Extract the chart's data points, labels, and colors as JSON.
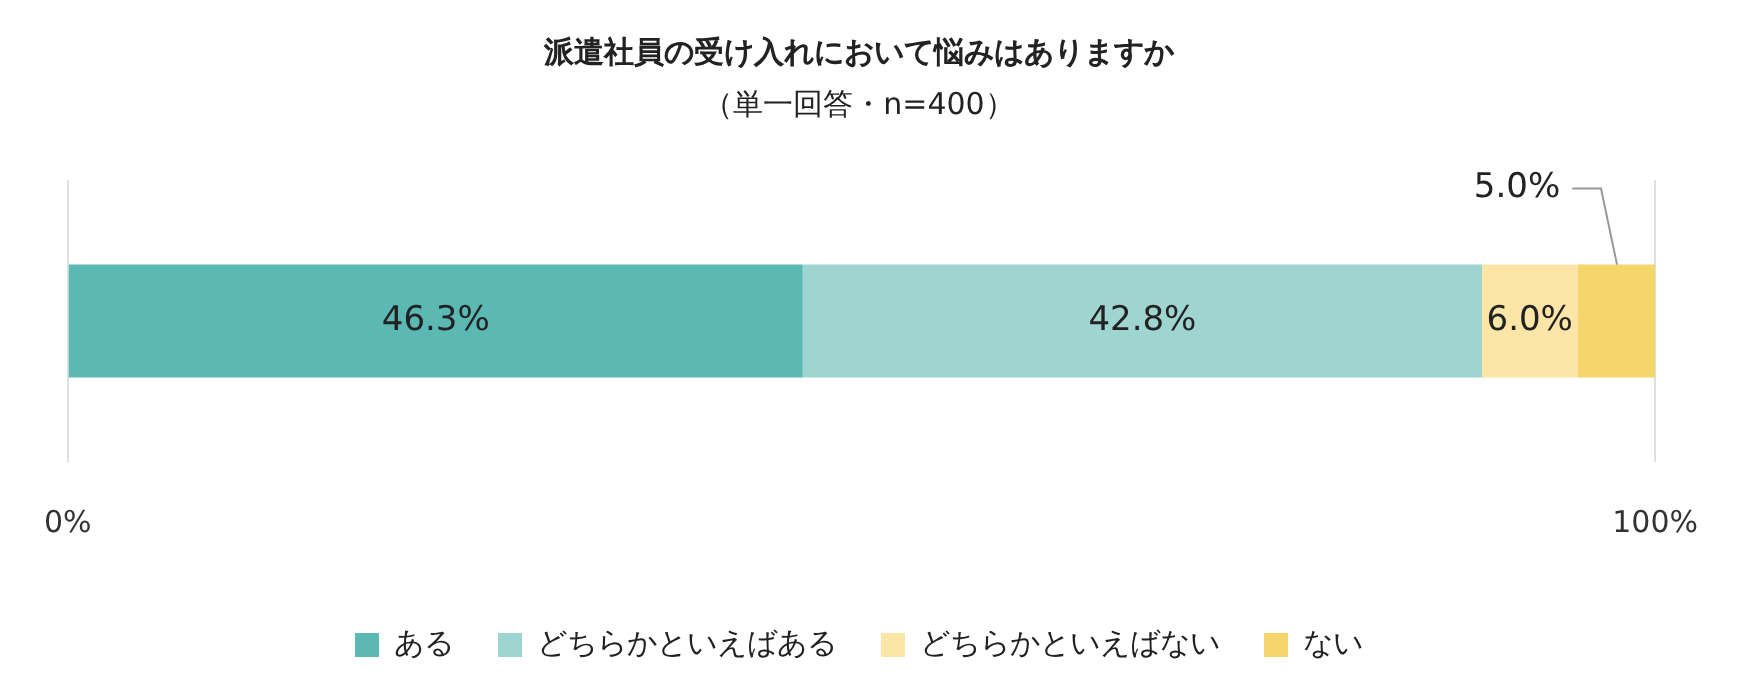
{
  "chart_data": {
    "type": "bar",
    "title": "派遣社員の受け入れにおいて悩みはありますか",
    "subtitle": "（単一回答・n=400）",
    "orientation": "horizontal",
    "stacked": true,
    "categories": [
      null
    ],
    "series": [
      {
        "name": "ある",
        "color": "#5bb8b2",
        "values": [
          46.3
        ],
        "value_labels": [
          "46.3%"
        ]
      },
      {
        "name": "どちらかといえばある",
        "color": "#9fd5d1",
        "values": [
          42.8
        ],
        "value_labels": [
          "42.8%"
        ]
      },
      {
        "name": "どちらかといえばない",
        "color": "#fbe6a8",
        "values": [
          6.0
        ],
        "value_labels": [
          "6.0%"
        ]
      },
      {
        "name": "ない",
        "color": "#f5d66c",
        "values": [
          5.0
        ],
        "value_labels": [
          "5.0%"
        ]
      }
    ],
    "xlim": [
      0,
      100
    ],
    "xticks": [
      {
        "value": 0,
        "label": "0%"
      },
      {
        "value": 100,
        "label": "100%"
      }
    ],
    "grid": "x",
    "legend": "bottom",
    "tick_labels": "x"
  }
}
